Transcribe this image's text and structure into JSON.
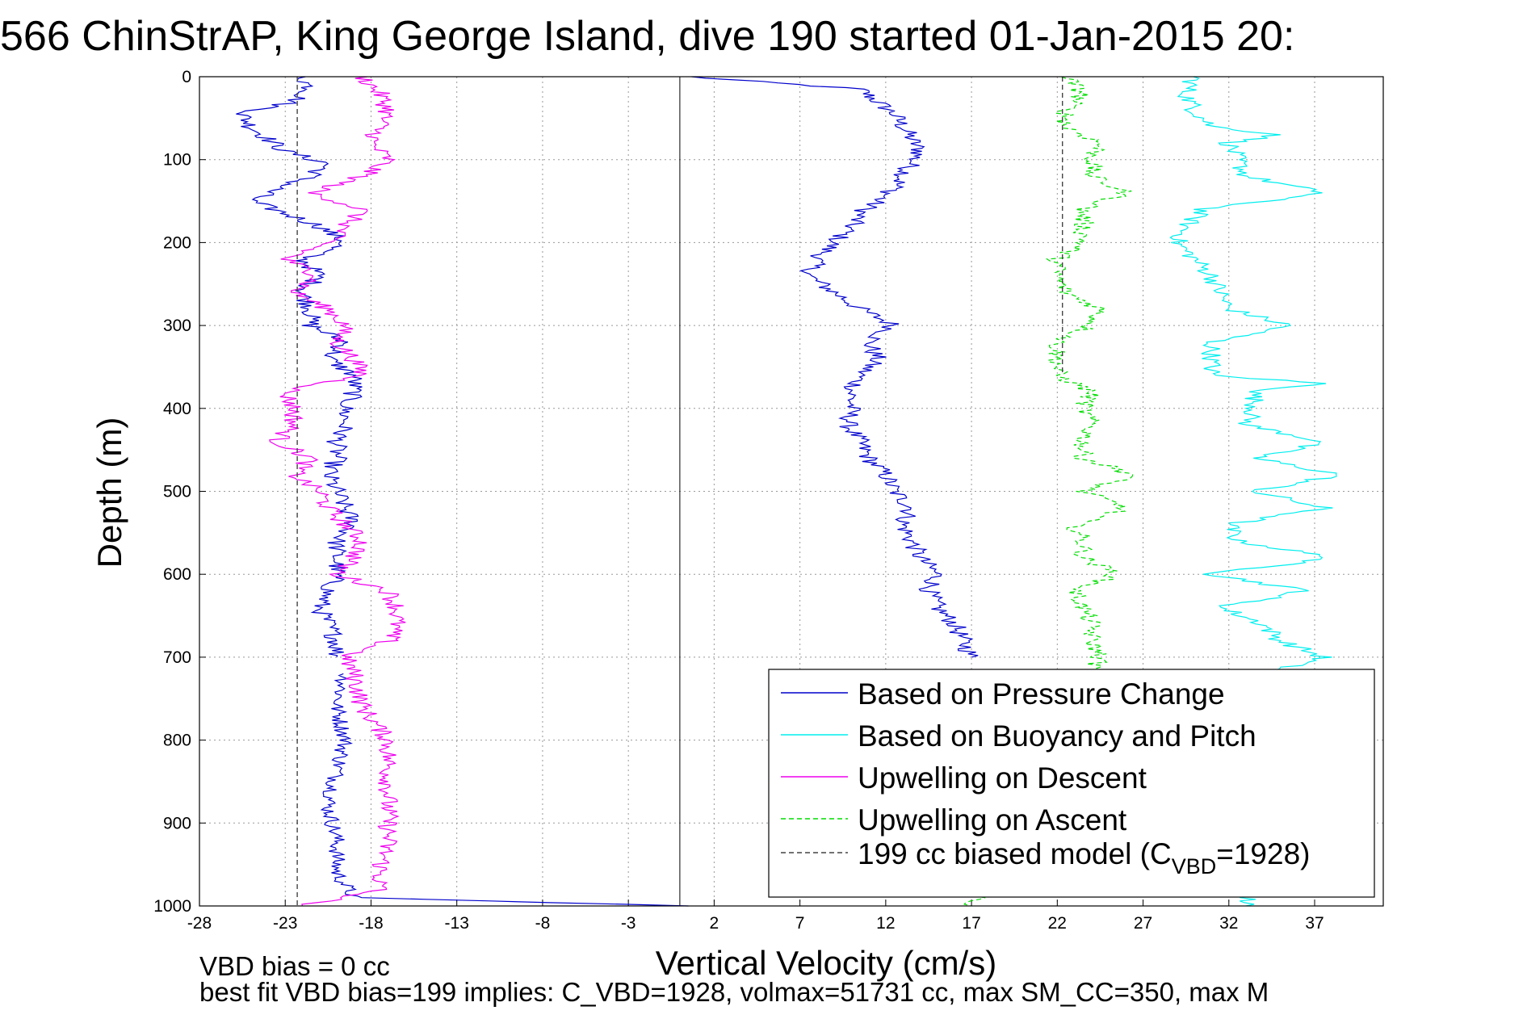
{
  "figure": {
    "title": "566 ChinStrAP, King George Island, dive 190 started 01-Jan-2015 20:",
    "note_bias": "VBD bias = 0 cc",
    "note_fit": "best fit VBD bias=199 implies: C_VBD=1928, volmax=51731 cc, max SM_CC=350, max M"
  },
  "chart_data": {
    "type": "line",
    "title": "566 ChinStrAP, King George Island, dive 190 started 01-Jan-2015 20:",
    "xlabel": "Vertical Velocity (cm/s)",
    "ylabel": "Depth (m)",
    "xlim": [
      -28,
      41
    ],
    "ylim": [
      1000,
      0
    ],
    "y_reversed": true,
    "xticks": [
      -28,
      -23,
      -18,
      -13,
      -8,
      -3,
      2,
      7,
      12,
      17,
      22,
      27,
      32,
      37
    ],
    "yticks": [
      0,
      100,
      200,
      300,
      400,
      500,
      600,
      700,
      800,
      900,
      1000
    ],
    "grid": true,
    "legend_position": "bottom-right",
    "zero_line_x": 0,
    "series": [
      {
        "name": "Based on Pressure Change",
        "color": "#0000cc",
        "style": "solid",
        "depth": [
          0,
          15,
          30,
          45,
          60,
          75,
          90,
          105,
          120,
          135,
          150,
          165,
          180,
          200,
          220,
          240,
          260,
          280,
          300,
          320,
          340,
          360,
          380,
          400,
          420,
          440,
          460,
          480,
          500,
          520,
          540,
          560,
          580,
          600,
          620,
          640,
          660,
          680,
          700
        ],
        "values": [
          0.5,
          10.5,
          11.5,
          12.5,
          13,
          13.5,
          14,
          13.5,
          13,
          12.5,
          11.5,
          10.5,
          10,
          9,
          8,
          7.5,
          9,
          10.5,
          12.5,
          11,
          11.5,
          10.5,
          10,
          10,
          9.8,
          10.5,
          11,
          12,
          12.5,
          13.5,
          13,
          13.5,
          14,
          15,
          14.5,
          15,
          16,
          16.5,
          17
        ],
        "values_ascent_section": [
          -22,
          -21.5,
          -22.5,
          -25.5,
          -25,
          -24,
          -23,
          -20.5,
          -21.5,
          -23.5,
          -25,
          -23,
          -21,
          -19.5,
          -22,
          -21,
          -22,
          -21.5,
          -21.5,
          -19.5,
          -20.5,
          -19,
          -19,
          -19.5,
          -19.5,
          -20,
          -20,
          -20.5,
          -20,
          -19.5,
          -19,
          -20,
          -20,
          -20,
          -20.5,
          -21,
          -20.5,
          -20,
          -20
        ],
        "values_ascent_deep": {
          "depth": [
            720,
            760,
            800,
            840,
            880,
            920,
            960,
            990,
            1000
          ],
          "values": [
            -19.5,
            -20,
            -19.5,
            -20,
            -20.5,
            -20,
            -20,
            -19,
            0.5
          ]
        }
      },
      {
        "name": "Based on Buoyancy and Pitch",
        "color": "#00eeee",
        "style": "solid",
        "depth": [
          0,
          20,
          40,
          60,
          70,
          80,
          100,
          120,
          140,
          160,
          180,
          200,
          220,
          240,
          260,
          280,
          300,
          320,
          340,
          360,
          370,
          380,
          400,
          420,
          440,
          460,
          480,
          500,
          520,
          540,
          560,
          580,
          600,
          620,
          640,
          660,
          680,
          700,
          720,
          1000
        ],
        "values": [
          30,
          29.5,
          30,
          31,
          35,
          32,
          32.5,
          33,
          37.5,
          30.5,
          29.5,
          29,
          30,
          31,
          31.5,
          32,
          35.5,
          31,
          31,
          31,
          37.5,
          33.5,
          33.5,
          33,
          37.5,
          33.5,
          38.5,
          33.5,
          37.5,
          32,
          32.5,
          38,
          31,
          36.5,
          31.5,
          34,
          35,
          37.5,
          34,
          33
        ]
      },
      {
        "name": "Upwelling on Descent",
        "color": "#ee00ee",
        "style": "solid",
        "depth": [
          0,
          20,
          40,
          60,
          80,
          100,
          120,
          140,
          160,
          180,
          200,
          220,
          240,
          260,
          280,
          300,
          320,
          340,
          360,
          380,
          400,
          420,
          440,
          460,
          480,
          500,
          520,
          540,
          560,
          580,
          600,
          620,
          640,
          660,
          680,
          700,
          720,
          760,
          800,
          840,
          880,
          920,
          960,
          980,
          1000
        ],
        "values": [
          -18.5,
          -17.5,
          -17,
          -17.5,
          -18,
          -17,
          -18.5,
          -21.5,
          -18.5,
          -19.5,
          -20.5,
          -23,
          -21,
          -22.5,
          -20.5,
          -19.5,
          -20,
          -19,
          -18.5,
          -23,
          -22.5,
          -22.5,
          -23.5,
          -21.5,
          -22.5,
          -21,
          -20.5,
          -19.5,
          -18.5,
          -19,
          -20,
          -17,
          -16.5,
          -16.5,
          -17,
          -19.5,
          -19,
          -18.5,
          -17,
          -17,
          -17,
          -17,
          -17.5,
          -17.5,
          -22
        ]
      },
      {
        "name": "Upwelling on Ascent",
        "color": "#00dd00",
        "style": "dashed",
        "depth": [
          0,
          20,
          40,
          60,
          80,
          100,
          120,
          140,
          160,
          180,
          200,
          220,
          240,
          260,
          280,
          300,
          320,
          340,
          360,
          380,
          400,
          420,
          440,
          460,
          480,
          500,
          520,
          540,
          560,
          580,
          600,
          620,
          640,
          660,
          680,
          700,
          720,
          1000
        ],
        "values": [
          22.5,
          23.5,
          22.5,
          22.5,
          24.5,
          24,
          24,
          26,
          23.5,
          23.5,
          23.5,
          22,
          22,
          22.5,
          24.5,
          24,
          22,
          22,
          22,
          24,
          23.5,
          24,
          23.5,
          23.5,
          26.5,
          23.5,
          26,
          23,
          23.5,
          23.5,
          25.5,
          23,
          23.5,
          24,
          24,
          24.5,
          24,
          17
        ]
      },
      {
        "name": "199 cc biased model (C",
        "subscript": "VBD",
        "suffix": "=1928)",
        "color": "#444444",
        "style": "dashed",
        "segments": [
          {
            "depth": [
              0,
              1000
            ],
            "values": [
              -22.3,
              -22.3
            ]
          },
          {
            "depth": [
              0,
              360
            ],
            "values": [
              22.3,
              22.3
            ]
          }
        ]
      }
    ]
  }
}
